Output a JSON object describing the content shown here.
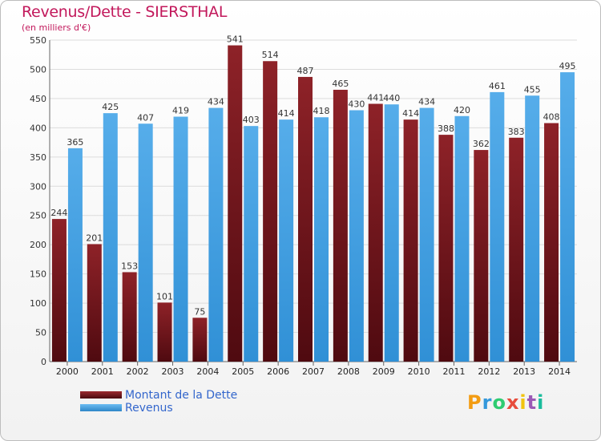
{
  "header": {
    "title": "Revenus/Dette - SIERSTHAL",
    "subtitle": "(en milliers d'€)"
  },
  "legend": {
    "items": [
      {
        "label": "Montant de la Dette",
        "color": "#7b1a1f"
      },
      {
        "label": "Revenus",
        "color": "#4aa3e6"
      }
    ]
  },
  "logo": {
    "letters": [
      "P",
      "r",
      "o",
      "x",
      "i",
      "t",
      "i"
    ],
    "colors": [
      "#f39c12",
      "#3498db",
      "#2ecc71",
      "#e74c3c",
      "#f1c40f",
      "#9b59b6",
      "#1abc9c"
    ]
  },
  "chart_data": {
    "type": "bar",
    "categories": [
      "2000",
      "2001",
      "2002",
      "2003",
      "2004",
      "2005",
      "2006",
      "2007",
      "2008",
      "2009",
      "2010",
      "2011",
      "2012",
      "2013",
      "2014"
    ],
    "series": [
      {
        "name": "Montant de la Dette",
        "color": "#7b1a1f",
        "values": [
          244,
          201,
          153,
          101,
          75,
          541,
          514,
          487,
          465,
          441,
          414,
          388,
          362,
          383,
          408
        ]
      },
      {
        "name": "Revenus",
        "color": "#4aa3e6",
        "values": [
          365,
          425,
          407,
          419,
          434,
          403,
          414,
          418,
          430,
          440,
          434,
          420,
          461,
          455,
          495
        ]
      }
    ],
    "ylim": [
      0,
      550
    ],
    "yticks": [
      "0",
      "50",
      "100",
      "150",
      "200",
      "250",
      "300",
      "350",
      "400",
      "450",
      "500",
      "550"
    ],
    "grid": true,
    "legend_position": "bottom-left"
  }
}
